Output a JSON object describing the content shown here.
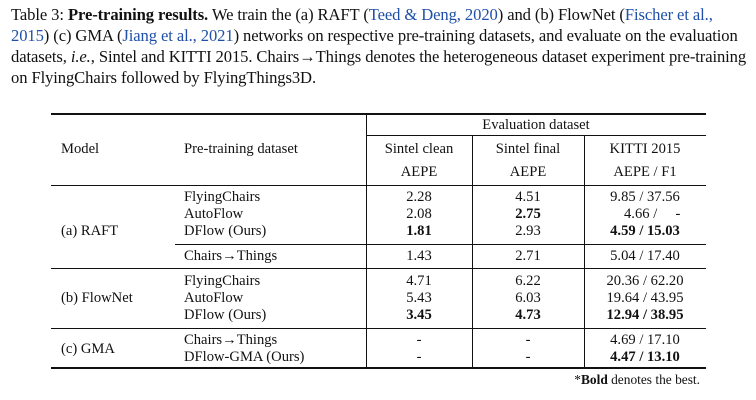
{
  "caption": {
    "label": "Table 3:",
    "title": "Pre-training results.",
    "s1": "We train the (a) RAFT (",
    "c1": "Teed & Deng,",
    "c1y": "2020",
    "s2": ") and (b) FlowNet (",
    "c2": "Fischer et al.,",
    "c2y": "2015",
    "s3": ") (c) GMA (",
    "c3": "Jiang et al.,",
    "c3y": "2021",
    "s4": ") networks on respective pre-training datasets, and evaluate on the evaluation datasets,",
    "ie": "i.e.",
    "s5": ", Sintel and KITTI 2015. Chairs→Things denotes the heterogeneous dataset experiment pre-training on FlyingChairs followed by FlyingThings3D."
  },
  "header": {
    "model": "Model",
    "pretrain": "Pre-training dataset",
    "eval": "Evaluation dataset",
    "sintel_clean": "Sintel clean",
    "sintel_final": "Sintel final",
    "kitti": "KITTI 2015",
    "metric_clean": "AEPE",
    "metric_final": "AEPE",
    "metric_kitti": "AEPE / F1"
  },
  "groups": {
    "raft": "(a) RAFT",
    "flownet": "(b) FlowNet",
    "gma": "(c) GMA"
  },
  "rows": [
    {
      "dataset": "FlyingChairs",
      "clean": "2.28",
      "final": "4.51",
      "kitti": "9.85 / 37.56"
    },
    {
      "dataset": "AutoFlow",
      "clean": "2.08",
      "final": "2.75",
      "kitti": "4.66 /     -"
    },
    {
      "dataset": "DFlow (Ours)",
      "clean": "1.81",
      "final": "2.93",
      "kitti": "4.59 / 15.03"
    },
    {
      "dataset": "Chairs→Things",
      "clean": "1.43",
      "final": "2.71",
      "kitti": "5.04 / 17.40"
    },
    {
      "dataset": "FlyingChairs",
      "clean": "4.71",
      "final": "6.22",
      "kitti": "20.36 / 62.20"
    },
    {
      "dataset": "AutoFlow",
      "clean": "5.43",
      "final": "6.03",
      "kitti": "19.64 / 43.95"
    },
    {
      "dataset": "DFlow (Ours)",
      "clean": "3.45",
      "final": "4.73",
      "kitti": "12.94 / 38.95"
    },
    {
      "dataset": "Chairs→Things",
      "clean": "-",
      "final": "-",
      "kitti": "4.69 / 17.10"
    },
    {
      "dataset": "DFlow-GMA (Ours)",
      "clean": "-",
      "final": "-",
      "kitti": "4.47 / 13.10"
    }
  ],
  "footnote": {
    "star": "*",
    "bold": "Bold",
    "rest": " denotes the best."
  }
}
